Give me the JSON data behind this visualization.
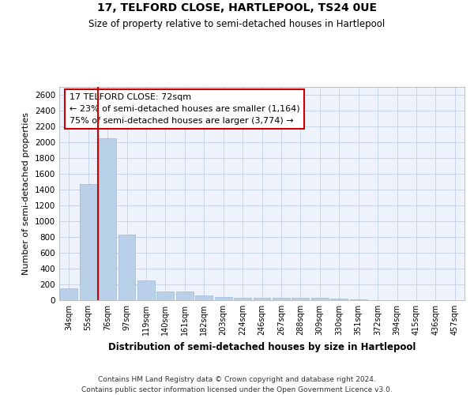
{
  "title1": "17, TELFORD CLOSE, HARTLEPOOL, TS24 0UE",
  "title2": "Size of property relative to semi-detached houses in Hartlepool",
  "xlabel": "Distribution of semi-detached houses by size in Hartlepool",
  "ylabel": "Number of semi-detached properties",
  "bin_labels": [
    "34sqm",
    "55sqm",
    "76sqm",
    "97sqm",
    "119sqm",
    "140sqm",
    "161sqm",
    "182sqm",
    "203sqm",
    "224sqm",
    "246sqm",
    "267sqm",
    "288sqm",
    "309sqm",
    "330sqm",
    "351sqm",
    "372sqm",
    "394sqm",
    "415sqm",
    "436sqm",
    "457sqm"
  ],
  "bar_values": [
    150,
    1470,
    2050,
    835,
    255,
    115,
    115,
    65,
    45,
    30,
    30,
    35,
    35,
    30,
    25,
    15,
    5,
    3,
    2,
    1,
    1
  ],
  "bar_color": "#b8d0e8",
  "bar_edge_color": "#9ab8d8",
  "grid_color": "#c8d4e8",
  "background_color": "#eef2fa",
  "vline_color": "#cc0000",
  "annotation_text": "17 TELFORD CLOSE: 72sqm\n← 23% of semi-detached houses are smaller (1,164)\n75% of semi-detached houses are larger (3,774) →",
  "annotation_box_color": "#ffffff",
  "annotation_box_edge": "#cc0000",
  "footnote1": "Contains HM Land Registry data © Crown copyright and database right 2024.",
  "footnote2": "Contains public sector information licensed under the Open Government Licence v3.0.",
  "ylim": [
    0,
    2700
  ],
  "yticks": [
    0,
    200,
    400,
    600,
    800,
    1000,
    1200,
    1400,
    1600,
    1800,
    2000,
    2200,
    2400,
    2600
  ]
}
